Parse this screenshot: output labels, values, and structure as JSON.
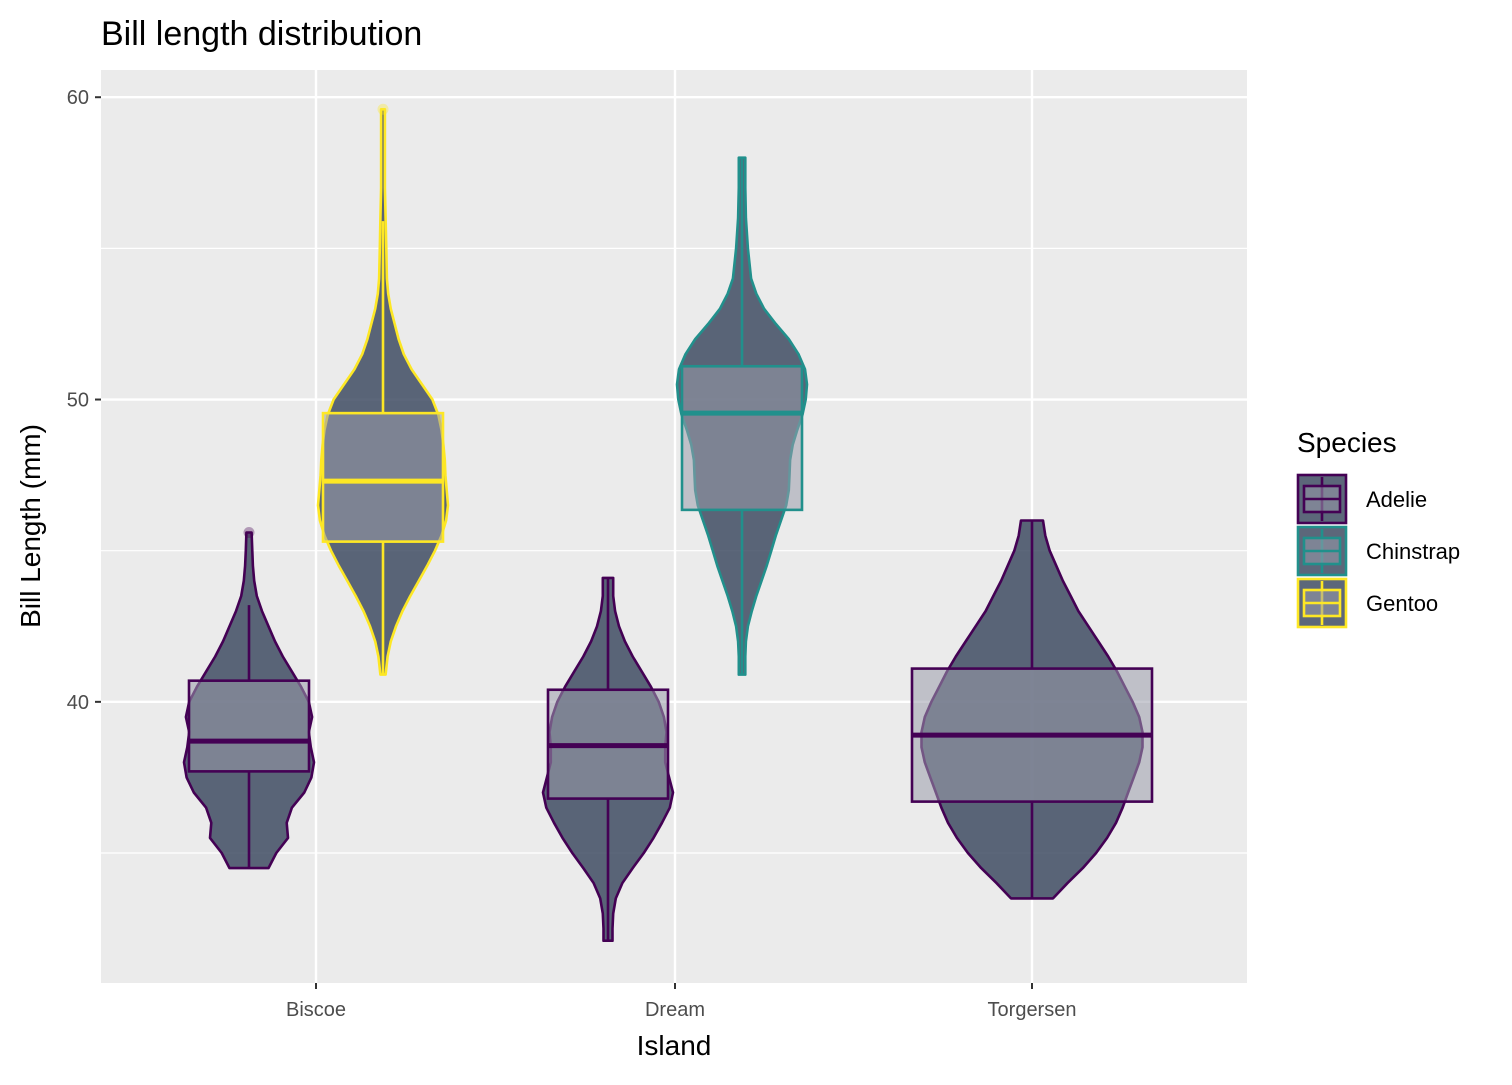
{
  "chart_data": {
    "type": "violin",
    "title": "Bill length distribution",
    "xlabel": "Island",
    "ylabel": "Bill Length (mm)",
    "categories": [
      "Biscoe",
      "Dream",
      "Torgersen"
    ],
    "ylim": [
      30.7,
      60.9
    ],
    "yticks": [
      40,
      50,
      60
    ],
    "grid": true,
    "legend_position": "right",
    "legend_title": "Species",
    "series": [
      {
        "name": "Adelie",
        "color": "#440154",
        "groups": [
          {
            "island": "Biscoe",
            "min": 34.5,
            "q1": 37.7,
            "median": 38.7,
            "q3": 40.7,
            "max": 45.6,
            "whisker_low": 34.5,
            "whisker_high": 43.2,
            "outliers": [
              45.6
            ],
            "density": [
              [
                34.5,
                0.3
              ],
              [
                35.0,
                0.42
              ],
              [
                35.5,
                0.6
              ],
              [
                36.0,
                0.58
              ],
              [
                36.5,
                0.66
              ],
              [
                37.0,
                0.85
              ],
              [
                37.5,
                0.96
              ],
              [
                38.0,
                1.0
              ],
              [
                38.5,
                0.95
              ],
              [
                39.0,
                0.92
              ],
              [
                39.5,
                0.97
              ],
              [
                40.0,
                0.92
              ],
              [
                40.5,
                0.8
              ],
              [
                41.0,
                0.66
              ],
              [
                41.5,
                0.52
              ],
              [
                42.0,
                0.4
              ],
              [
                42.5,
                0.3
              ],
              [
                43.0,
                0.2
              ],
              [
                43.5,
                0.12
              ],
              [
                44.0,
                0.08
              ],
              [
                44.5,
                0.06
              ],
              [
                45.0,
                0.05
              ],
              [
                45.6,
                0.04
              ]
            ]
          },
          {
            "island": "Dream",
            "min": 32.1,
            "q1": 36.8,
            "median": 38.55,
            "q3": 40.4,
            "max": 44.1,
            "whisker_low": 32.1,
            "whisker_high": 44.1,
            "outliers": [],
            "density": [
              [
                32.1,
                0.07
              ],
              [
                32.5,
                0.07
              ],
              [
                33.0,
                0.08
              ],
              [
                33.5,
                0.12
              ],
              [
                34.0,
                0.22
              ],
              [
                34.5,
                0.38
              ],
              [
                35.0,
                0.55
              ],
              [
                35.5,
                0.7
              ],
              [
                36.0,
                0.83
              ],
              [
                36.5,
                0.95
              ],
              [
                37.0,
                1.0
              ],
              [
                37.5,
                0.94
              ],
              [
                38.0,
                0.88
              ],
              [
                38.5,
                0.88
              ],
              [
                39.0,
                0.9
              ],
              [
                39.5,
                0.86
              ],
              [
                40.0,
                0.78
              ],
              [
                40.5,
                0.66
              ],
              [
                41.0,
                0.52
              ],
              [
                41.5,
                0.38
              ],
              [
                42.0,
                0.26
              ],
              [
                42.5,
                0.17
              ],
              [
                43.0,
                0.11
              ],
              [
                43.5,
                0.08
              ],
              [
                44.1,
                0.08
              ]
            ]
          },
          {
            "island": "Torgersen",
            "min": 33.5,
            "q1": 36.7,
            "median": 38.9,
            "q3": 41.1,
            "max": 46.0,
            "whisker_low": 33.5,
            "whisker_high": 46.0,
            "outliers": [],
            "density": [
              [
                33.5,
                0.19
              ],
              [
                34.0,
                0.32
              ],
              [
                34.5,
                0.46
              ],
              [
                35.0,
                0.58
              ],
              [
                35.5,
                0.68
              ],
              [
                36.0,
                0.76
              ],
              [
                36.5,
                0.82
              ],
              [
                37.0,
                0.87
              ],
              [
                37.5,
                0.92
              ],
              [
                38.0,
                0.97
              ],
              [
                38.5,
                1.0
              ],
              [
                39.0,
                1.0
              ],
              [
                39.5,
                0.97
              ],
              [
                40.0,
                0.91
              ],
              [
                40.5,
                0.84
              ],
              [
                41.0,
                0.77
              ],
              [
                41.5,
                0.69
              ],
              [
                42.0,
                0.6
              ],
              [
                42.5,
                0.51
              ],
              [
                43.0,
                0.42
              ],
              [
                43.5,
                0.35
              ],
              [
                44.0,
                0.28
              ],
              [
                44.5,
                0.22
              ],
              [
                45.0,
                0.16
              ],
              [
                45.5,
                0.12
              ],
              [
                46.0,
                0.1
              ]
            ]
          }
        ]
      },
      {
        "name": "Chinstrap",
        "color": "#21908C",
        "groups": [
          {
            "island": "Dream",
            "min": 40.9,
            "q1": 46.35,
            "median": 49.55,
            "q3": 51.1,
            "max": 58.0,
            "whisker_low": 40.9,
            "whisker_high": 58.0,
            "outliers": [],
            "density": [
              [
                40.9,
                0.05
              ],
              [
                41.5,
                0.05
              ],
              [
                42.0,
                0.06
              ],
              [
                42.5,
                0.09
              ],
              [
                43.0,
                0.15
              ],
              [
                43.5,
                0.22
              ],
              [
                44.0,
                0.3
              ],
              [
                44.5,
                0.38
              ],
              [
                45.0,
                0.45
              ],
              [
                45.5,
                0.52
              ],
              [
                46.0,
                0.6
              ],
              [
                46.5,
                0.68
              ],
              [
                47.0,
                0.72
              ],
              [
                47.5,
                0.73
              ],
              [
                48.0,
                0.74
              ],
              [
                48.5,
                0.78
              ],
              [
                49.0,
                0.85
              ],
              [
                49.5,
                0.93
              ],
              [
                50.0,
                0.98
              ],
              [
                50.5,
                1.0
              ],
              [
                51.0,
                0.97
              ],
              [
                51.5,
                0.87
              ],
              [
                52.0,
                0.72
              ],
              [
                52.5,
                0.52
              ],
              [
                53.0,
                0.34
              ],
              [
                53.5,
                0.22
              ],
              [
                54.0,
                0.14
              ],
              [
                55.0,
                0.09
              ],
              [
                56.0,
                0.06
              ],
              [
                57.0,
                0.05
              ],
              [
                58.0,
                0.05
              ]
            ]
          }
        ]
      },
      {
        "name": "Gentoo",
        "color": "#FDE725",
        "groups": [
          {
            "island": "Biscoe",
            "min": 40.9,
            "q1": 45.3,
            "median": 47.3,
            "q3": 49.55,
            "max": 59.6,
            "whisker_low": 40.9,
            "whisker_high": 55.9,
            "outliers": [
              59.6
            ],
            "density": [
              [
                40.9,
                0.04
              ],
              [
                41.5,
                0.07
              ],
              [
                42.0,
                0.12
              ],
              [
                42.5,
                0.2
              ],
              [
                43.0,
                0.3
              ],
              [
                43.5,
                0.42
              ],
              [
                44.0,
                0.55
              ],
              [
                44.5,
                0.68
              ],
              [
                45.0,
                0.8
              ],
              [
                45.5,
                0.9
              ],
              [
                46.0,
                0.97
              ],
              [
                46.5,
                1.0
              ],
              [
                47.0,
                0.98
              ],
              [
                47.5,
                0.96
              ],
              [
                48.0,
                0.95
              ],
              [
                48.5,
                0.93
              ],
              [
                49.0,
                0.9
              ],
              [
                49.5,
                0.85
              ],
              [
                50.0,
                0.76
              ],
              [
                50.5,
                0.6
              ],
              [
                51.0,
                0.44
              ],
              [
                51.5,
                0.32
              ],
              [
                52.0,
                0.24
              ],
              [
                52.5,
                0.18
              ],
              [
                53.0,
                0.12
              ],
              [
                53.5,
                0.08
              ],
              [
                54.0,
                0.06
              ],
              [
                55.0,
                0.05
              ],
              [
                56.0,
                0.04
              ],
              [
                57.0,
                0.03
              ],
              [
                58.0,
                0.03
              ],
              [
                59.6,
                0.03
              ]
            ]
          }
        ]
      }
    ]
  }
}
